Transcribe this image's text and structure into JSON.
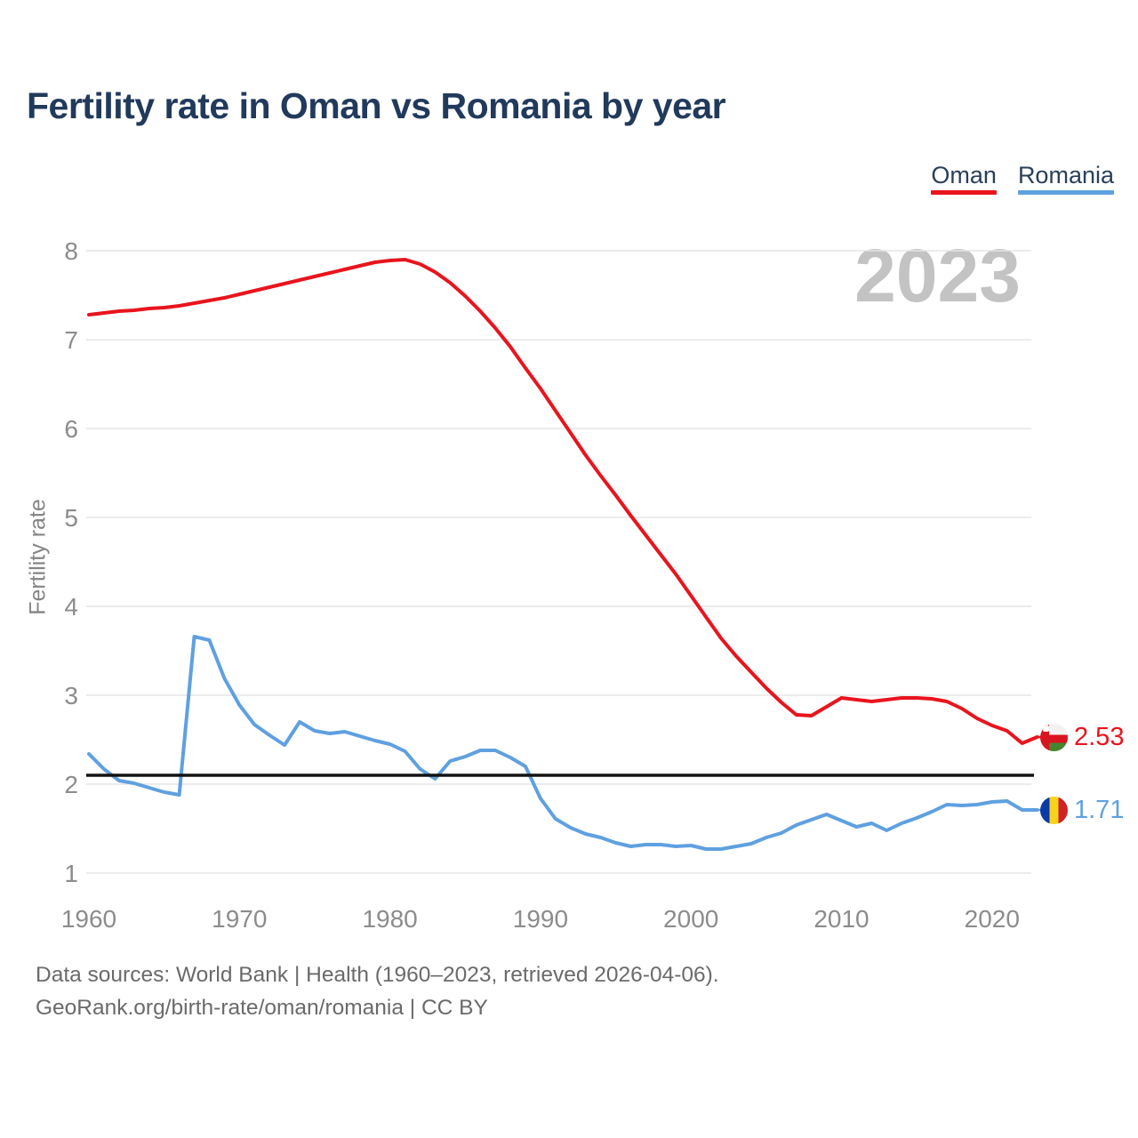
{
  "header": {
    "title": "Fertility rate in Oman vs Romania by year"
  },
  "legend": {
    "items": [
      {
        "label": "Oman",
        "color": "#e9141d"
      },
      {
        "label": "Romania",
        "color": "#5fa0e0"
      }
    ]
  },
  "watermark": "2023",
  "chart_data": {
    "type": "line",
    "title": "Fertility rate in Oman vs Romania by year",
    "xlabel": "",
    "ylabel": "Fertility rate",
    "ylim": [
      1,
      8
    ],
    "grid": "horizontal",
    "legend_position": "top-right",
    "y_ticks": [
      1,
      2,
      3,
      4,
      5,
      6,
      7,
      8
    ],
    "x_ticks": [
      1960,
      1970,
      1980,
      1990,
      2000,
      2010,
      2020
    ],
    "reference_line": 2.1,
    "x": [
      1960,
      1961,
      1962,
      1963,
      1964,
      1965,
      1966,
      1967,
      1968,
      1969,
      1970,
      1971,
      1972,
      1973,
      1974,
      1975,
      1976,
      1977,
      1978,
      1979,
      1980,
      1981,
      1982,
      1983,
      1984,
      1985,
      1986,
      1987,
      1988,
      1989,
      1990,
      1991,
      1992,
      1993,
      1994,
      1995,
      1996,
      1997,
      1998,
      1999,
      2000,
      2001,
      2002,
      2003,
      2004,
      2005,
      2006,
      2007,
      2008,
      2009,
      2010,
      2011,
      2012,
      2013,
      2014,
      2015,
      2016,
      2017,
      2018,
      2019,
      2020,
      2021,
      2022,
      2023
    ],
    "series": [
      {
        "name": "Oman",
        "color": "#e9141d",
        "values": [
          7.28,
          7.3,
          7.32,
          7.33,
          7.35,
          7.36,
          7.38,
          7.41,
          7.44,
          7.47,
          7.51,
          7.55,
          7.59,
          7.63,
          7.67,
          7.71,
          7.75,
          7.79,
          7.83,
          7.87,
          7.89,
          7.9,
          7.85,
          7.76,
          7.64,
          7.49,
          7.32,
          7.13,
          6.92,
          6.68,
          6.45,
          6.2,
          5.95,
          5.7,
          5.47,
          5.25,
          5.02,
          4.8,
          4.58,
          4.36,
          4.12,
          3.88,
          3.64,
          3.44,
          3.26,
          3.08,
          2.92,
          2.78,
          2.77,
          2.87,
          2.97,
          2.95,
          2.93,
          2.95,
          2.97,
          2.97,
          2.96,
          2.93,
          2.85,
          2.74,
          2.66,
          2.6,
          2.46,
          2.53
        ]
      },
      {
        "name": "Romania",
        "color": "#5fa0e0",
        "values": [
          2.34,
          2.17,
          2.04,
          2.01,
          1.96,
          1.91,
          1.88,
          3.66,
          3.62,
          3.19,
          2.89,
          2.67,
          2.55,
          2.44,
          2.7,
          2.6,
          2.57,
          2.59,
          2.54,
          2.49,
          2.45,
          2.37,
          2.17,
          2.06,
          2.26,
          2.31,
          2.38,
          2.38,
          2.3,
          2.2,
          1.84,
          1.61,
          1.51,
          1.44,
          1.4,
          1.34,
          1.3,
          1.32,
          1.32,
          1.3,
          1.31,
          1.27,
          1.27,
          1.3,
          1.33,
          1.4,
          1.45,
          1.54,
          1.6,
          1.66,
          1.59,
          1.52,
          1.56,
          1.48,
          1.56,
          1.62,
          1.69,
          1.77,
          1.76,
          1.77,
          1.8,
          1.81,
          1.71,
          1.71
        ]
      }
    ],
    "end_labels": [
      {
        "series": "Oman",
        "value": "2.53"
      },
      {
        "series": "Romania",
        "value": "1.71"
      }
    ]
  },
  "footer": {
    "line1": "Data sources: World Bank | Health (1960–2023, retrieved 2026-04-06).",
    "line2": "GeoRank.org/birth-rate/oman/romania | CC BY"
  }
}
